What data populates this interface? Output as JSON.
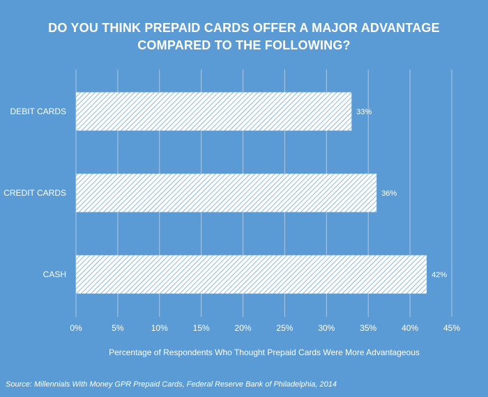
{
  "chart_data": {
    "type": "bar",
    "orientation": "horizontal",
    "title_lines": [
      "DO YOU THINK PREPAID CARDS OFFER A MAJOR ADVANTAGE",
      "COMPARED TO THE FOLLOWING?"
    ],
    "categories": [
      "DEBIT CARDS",
      "CREDIT CARDS",
      "CASH"
    ],
    "values": [
      33,
      36,
      42
    ],
    "data_labels": [
      "33%",
      "36%",
      "42%"
    ],
    "xlim": [
      0,
      45
    ],
    "x_ticks": [
      0,
      5,
      10,
      15,
      20,
      25,
      30,
      35,
      40,
      45
    ],
    "x_tick_labels": [
      "0%",
      "5%",
      "10%",
      "15%",
      "20%",
      "25%",
      "30%",
      "35%",
      "40%",
      "45%"
    ],
    "xlabel": "Percentage of Respondents Who Thought Prepaid Cards Were More Advantageous",
    "grid": true,
    "bar_fill": "diagonal-hatch white",
    "source": "Source: Millennials With Money GPR Prepaid Cards, Federal Reserve Bank of Philadelphia, 2014"
  },
  "colors": {
    "background": "#5b9bd5",
    "bar": "#ffffff",
    "hatch": "#5b9bd5",
    "grid": "#a9c9ea",
    "text": "#ffffff"
  }
}
